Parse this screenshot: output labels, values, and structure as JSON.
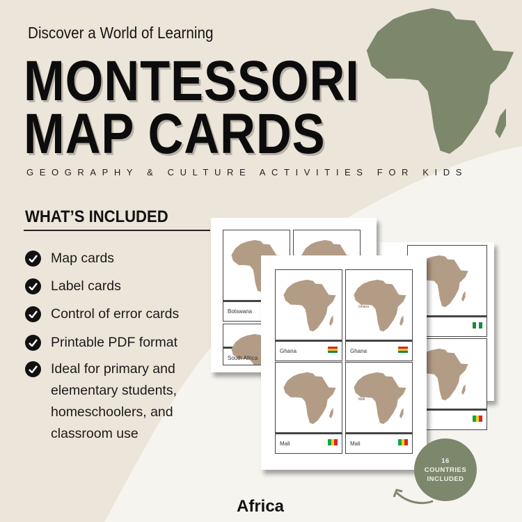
{
  "header": {
    "tagline": "Discover a World of Learning",
    "title_line1": "MONTESSORI",
    "title_line2": "MAP CARDS",
    "subtitle": "GEOGRAPHY & CULTURE ACTIVITIES FOR KIDS"
  },
  "included": {
    "heading": "WHAT’S INCLUDED",
    "items": [
      {
        "lines": [
          "Map cards"
        ]
      },
      {
        "lines": [
          "Label cards"
        ]
      },
      {
        "lines": [
          "Control of error cards"
        ]
      },
      {
        "lines": [
          "Printable PDF format"
        ]
      },
      {
        "lines": [
          "Ideal for primary and",
          "elementary students,",
          "homeschoolers, and",
          "classroom use"
        ]
      }
    ]
  },
  "sheets": {
    "back_left": [
      "Botswana",
      "South Africa"
    ],
    "front": [
      {
        "label": "Ghana",
        "flag": [
          "#d8262b",
          "#f4c21b",
          "#168a3f"
        ],
        "flag_dir": "rows",
        "pointer": "Ghana-label-none"
      },
      {
        "label": "Ghana",
        "flag": [
          "#d8262b",
          "#f4c21b",
          "#168a3f"
        ],
        "flag_dir": "rows",
        "map_text": "Ghana"
      },
      {
        "label": "Mali",
        "flag": [
          "#16a34a",
          "#f4d11b",
          "#d8262b"
        ],
        "flag_dir": "cols"
      },
      {
        "label": "Mali",
        "flag": [
          "#16a34a",
          "#f4d11b",
          "#d8262b"
        ],
        "flag_dir": "cols",
        "map_text": "Mali"
      }
    ],
    "back_right_flags": [
      [
        "#168a3f",
        "#ffffff",
        "#168a3f"
      ],
      [
        "#16a34a",
        "#f4d11b",
        "#d8262b"
      ]
    ]
  },
  "badge": {
    "count": "16",
    "line2": "COUNTRIES",
    "line3": "INCLUDED"
  },
  "footer_label": "Africa",
  "colors": {
    "background": "#ece5da",
    "accent_green": "#7d876c",
    "map_fill": "#b39c86"
  }
}
